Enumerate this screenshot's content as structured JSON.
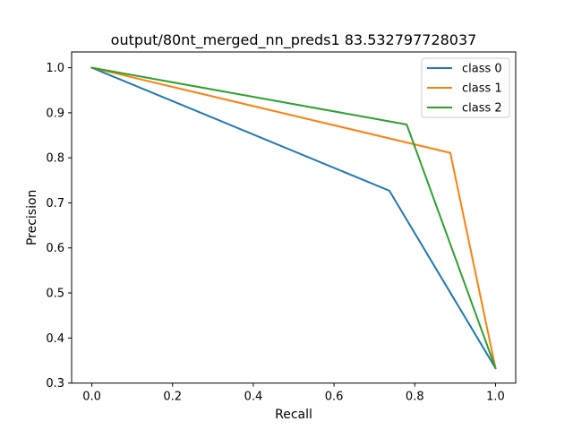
{
  "chart_data": {
    "type": "line",
    "title": "output/80nt_merged_nn_preds1 83.532797728037",
    "xlabel": "Recall",
    "ylabel": "Precision",
    "xlim": [
      -0.05,
      1.05
    ],
    "ylim": [
      0.3,
      1.035
    ],
    "xticks": [
      0.0,
      0.2,
      0.4,
      0.6,
      0.8,
      1.0
    ],
    "xtick_labels": [
      "0.0",
      "0.2",
      "0.4",
      "0.6",
      "0.8",
      "1.0"
    ],
    "yticks": [
      0.3,
      0.4,
      0.5,
      0.6,
      0.7,
      0.8,
      0.9,
      1.0
    ],
    "ytick_labels": [
      "0.3",
      "0.4",
      "0.5",
      "0.6",
      "0.7",
      "0.8",
      "0.9",
      "1.0"
    ],
    "grid": false,
    "legend_position": "top-right",
    "series": [
      {
        "name": "class 0",
        "color": "#1f77b4",
        "x": [
          0.0,
          0.737,
          1.0
        ],
        "y": [
          1.0,
          0.727,
          0.333
        ]
      },
      {
        "name": "class 1",
        "color": "#ff7f0e",
        "x": [
          0.0,
          0.888,
          1.0
        ],
        "y": [
          1.0,
          0.811,
          0.333
        ]
      },
      {
        "name": "class 2",
        "color": "#2ca02c",
        "x": [
          0.0,
          0.78,
          1.0
        ],
        "y": [
          1.0,
          0.874,
          0.333
        ]
      }
    ]
  }
}
